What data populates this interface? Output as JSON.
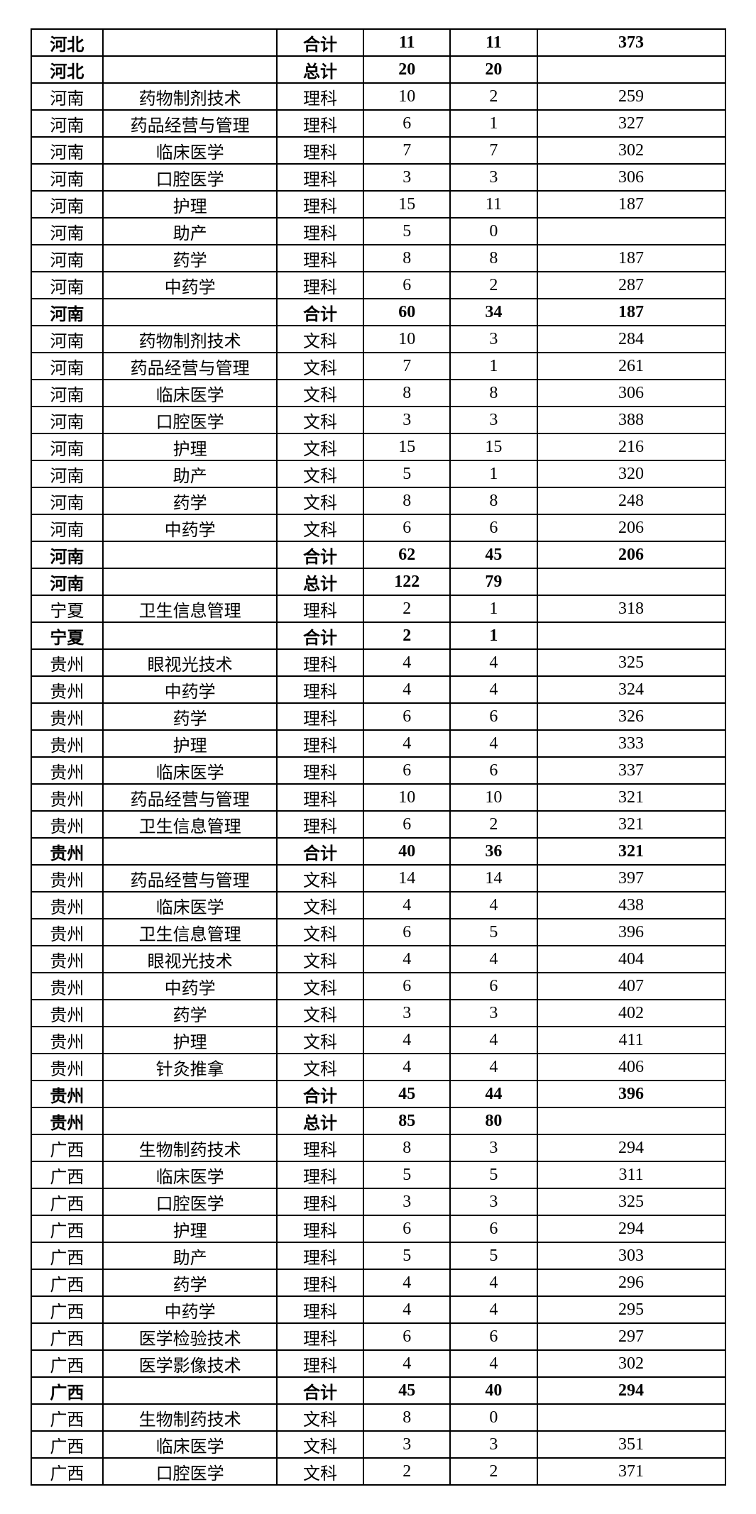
{
  "table": {
    "rows": [
      {
        "bold": true,
        "cells": [
          "河北",
          "",
          "合计",
          "11",
          "11",
          "373"
        ]
      },
      {
        "bold": true,
        "cells": [
          "河北",
          "",
          "总计",
          "20",
          "20",
          ""
        ]
      },
      {
        "bold": false,
        "cells": [
          "河南",
          "药物制剂技术",
          "理科",
          "10",
          "2",
          "259"
        ]
      },
      {
        "bold": false,
        "cells": [
          "河南",
          "药品经营与管理",
          "理科",
          "6",
          "1",
          "327"
        ]
      },
      {
        "bold": false,
        "cells": [
          "河南",
          "临床医学",
          "理科",
          "7",
          "7",
          "302"
        ]
      },
      {
        "bold": false,
        "cells": [
          "河南",
          "口腔医学",
          "理科",
          "3",
          "3",
          "306"
        ]
      },
      {
        "bold": false,
        "cells": [
          "河南",
          "护理",
          "理科",
          "15",
          "11",
          "187"
        ]
      },
      {
        "bold": false,
        "cells": [
          "河南",
          "助产",
          "理科",
          "5",
          "0",
          ""
        ]
      },
      {
        "bold": false,
        "cells": [
          "河南",
          "药学",
          "理科",
          "8",
          "8",
          "187"
        ]
      },
      {
        "bold": false,
        "cells": [
          "河南",
          "中药学",
          "理科",
          "6",
          "2",
          "287"
        ]
      },
      {
        "bold": true,
        "cells": [
          "河南",
          "",
          "合计",
          "60",
          "34",
          "187"
        ]
      },
      {
        "bold": false,
        "cells": [
          "河南",
          "药物制剂技术",
          "文科",
          "10",
          "3",
          "284"
        ]
      },
      {
        "bold": false,
        "cells": [
          "河南",
          "药品经营与管理",
          "文科",
          "7",
          "1",
          "261"
        ]
      },
      {
        "bold": false,
        "cells": [
          "河南",
          "临床医学",
          "文科",
          "8",
          "8",
          "306"
        ]
      },
      {
        "bold": false,
        "cells": [
          "河南",
          "口腔医学",
          "文科",
          "3",
          "3",
          "388"
        ]
      },
      {
        "bold": false,
        "cells": [
          "河南",
          "护理",
          "文科",
          "15",
          "15",
          "216"
        ]
      },
      {
        "bold": false,
        "cells": [
          "河南",
          "助产",
          "文科",
          "5",
          "1",
          "320"
        ]
      },
      {
        "bold": false,
        "cells": [
          "河南",
          "药学",
          "文科",
          "8",
          "8",
          "248"
        ]
      },
      {
        "bold": false,
        "cells": [
          "河南",
          "中药学",
          "文科",
          "6",
          "6",
          "206"
        ]
      },
      {
        "bold": true,
        "cells": [
          "河南",
          "",
          "合计",
          "62",
          "45",
          "206"
        ]
      },
      {
        "bold": true,
        "cells": [
          "河南",
          "",
          "总计",
          "122",
          "79",
          ""
        ]
      },
      {
        "bold": false,
        "cells": [
          "宁夏",
          "卫生信息管理",
          "理科",
          "2",
          "1",
          "318"
        ]
      },
      {
        "bold": true,
        "cells": [
          "宁夏",
          "",
          "合计",
          "2",
          "1",
          ""
        ]
      },
      {
        "bold": false,
        "cells": [
          "贵州",
          "眼视光技术",
          "理科",
          "4",
          "4",
          "325"
        ]
      },
      {
        "bold": false,
        "cells": [
          "贵州",
          "中药学",
          "理科",
          "4",
          "4",
          "324"
        ]
      },
      {
        "bold": false,
        "cells": [
          "贵州",
          "药学",
          "理科",
          "6",
          "6",
          "326"
        ]
      },
      {
        "bold": false,
        "cells": [
          "贵州",
          "护理",
          "理科",
          "4",
          "4",
          "333"
        ]
      },
      {
        "bold": false,
        "cells": [
          "贵州",
          "临床医学",
          "理科",
          "6",
          "6",
          "337"
        ]
      },
      {
        "bold": false,
        "cells": [
          "贵州",
          "药品经营与管理",
          "理科",
          "10",
          "10",
          "321"
        ]
      },
      {
        "bold": false,
        "cells": [
          "贵州",
          "卫生信息管理",
          "理科",
          "6",
          "2",
          "321"
        ]
      },
      {
        "bold": true,
        "cells": [
          "贵州",
          "",
          "合计",
          "40",
          "36",
          "321"
        ]
      },
      {
        "bold": false,
        "cells": [
          "贵州",
          "药品经营与管理",
          "文科",
          "14",
          "14",
          "397"
        ]
      },
      {
        "bold": false,
        "cells": [
          "贵州",
          "临床医学",
          "文科",
          "4",
          "4",
          "438"
        ]
      },
      {
        "bold": false,
        "cells": [
          "贵州",
          "卫生信息管理",
          "文科",
          "6",
          "5",
          "396"
        ]
      },
      {
        "bold": false,
        "cells": [
          "贵州",
          "眼视光技术",
          "文科",
          "4",
          "4",
          "404"
        ]
      },
      {
        "bold": false,
        "cells": [
          "贵州",
          "中药学",
          "文科",
          "6",
          "6",
          "407"
        ]
      },
      {
        "bold": false,
        "cells": [
          "贵州",
          "药学",
          "文科",
          "3",
          "3",
          "402"
        ]
      },
      {
        "bold": false,
        "cells": [
          "贵州",
          "护理",
          "文科",
          "4",
          "4",
          "411"
        ]
      },
      {
        "bold": false,
        "cells": [
          "贵州",
          "针灸推拿",
          "文科",
          "4",
          "4",
          "406"
        ]
      },
      {
        "bold": true,
        "cells": [
          "贵州",
          "",
          "合计",
          "45",
          "44",
          "396"
        ]
      },
      {
        "bold": true,
        "cells": [
          "贵州",
          "",
          "总计",
          "85",
          "80",
          ""
        ]
      },
      {
        "bold": false,
        "cells": [
          "广西",
          "生物制药技术",
          "理科",
          "8",
          "3",
          "294"
        ]
      },
      {
        "bold": false,
        "cells": [
          "广西",
          "临床医学",
          "理科",
          "5",
          "5",
          "311"
        ]
      },
      {
        "bold": false,
        "cells": [
          "广西",
          "口腔医学",
          "理科",
          "3",
          "3",
          "325"
        ]
      },
      {
        "bold": false,
        "cells": [
          "广西",
          "护理",
          "理科",
          "6",
          "6",
          "294"
        ]
      },
      {
        "bold": false,
        "cells": [
          "广西",
          "助产",
          "理科",
          "5",
          "5",
          "303"
        ]
      },
      {
        "bold": false,
        "cells": [
          "广西",
          "药学",
          "理科",
          "4",
          "4",
          "296"
        ]
      },
      {
        "bold": false,
        "cells": [
          "广西",
          "中药学",
          "理科",
          "4",
          "4",
          "295"
        ]
      },
      {
        "bold": false,
        "cells": [
          "广西",
          "医学检验技术",
          "理科",
          "6",
          "6",
          "297"
        ]
      },
      {
        "bold": false,
        "cells": [
          "广西",
          "医学影像技术",
          "理科",
          "4",
          "4",
          "302"
        ]
      },
      {
        "bold": true,
        "cells": [
          "广西",
          "",
          "合计",
          "45",
          "40",
          "294"
        ]
      },
      {
        "bold": false,
        "cells": [
          "广西",
          "生物制药技术",
          "文科",
          "8",
          "0",
          ""
        ]
      },
      {
        "bold": false,
        "cells": [
          "广西",
          "临床医学",
          "文科",
          "3",
          "3",
          "351"
        ]
      },
      {
        "bold": false,
        "cells": [
          "广西",
          "口腔医学",
          "文科",
          "2",
          "2",
          "371"
        ]
      }
    ]
  }
}
